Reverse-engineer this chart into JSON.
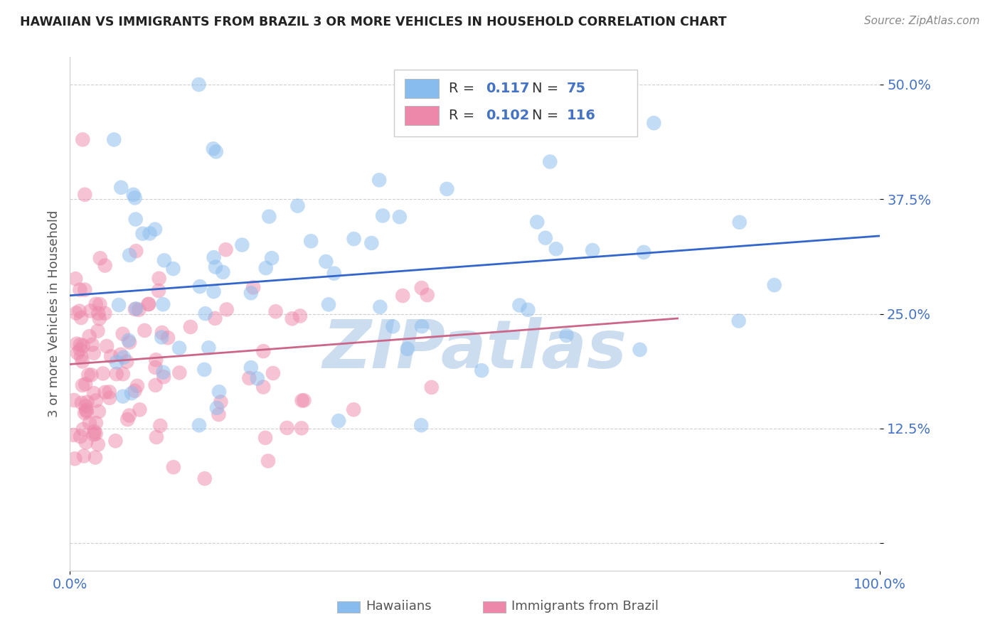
{
  "title": "HAWAIIAN VS IMMIGRANTS FROM BRAZIL 3 OR MORE VEHICLES IN HOUSEHOLD CORRELATION CHART",
  "source": "Source: ZipAtlas.com",
  "ylabel": "3 or more Vehicles in Household",
  "xlim": [
    0,
    100
  ],
  "ylim": [
    -3,
    53
  ],
  "yticks": [
    0,
    12.5,
    25.0,
    37.5,
    50.0
  ],
  "ytick_labels": [
    "",
    "12.5%",
    "25.0%",
    "37.5%",
    "50.0%"
  ],
  "xtick_labels": [
    "0.0%",
    "100.0%"
  ],
  "blue_color": "#88bbee",
  "pink_color": "#ee88aa",
  "blue_line_color": "#3366cc",
  "pink_line_color": "#cc6688",
  "blue_tick_color": "#4472c4",
  "watermark": "ZIPatlas",
  "watermark_color": "#ccddf0",
  "background_color": "#ffffff",
  "grid_color": "#bbbbbb",
  "blue_line_x0": 0,
  "blue_line_y0": 27.0,
  "blue_line_x1": 100,
  "blue_line_y1": 33.5,
  "pink_line_x0": 0,
  "pink_line_y0": 19.5,
  "pink_line_x1": 75,
  "pink_line_y1": 24.5
}
